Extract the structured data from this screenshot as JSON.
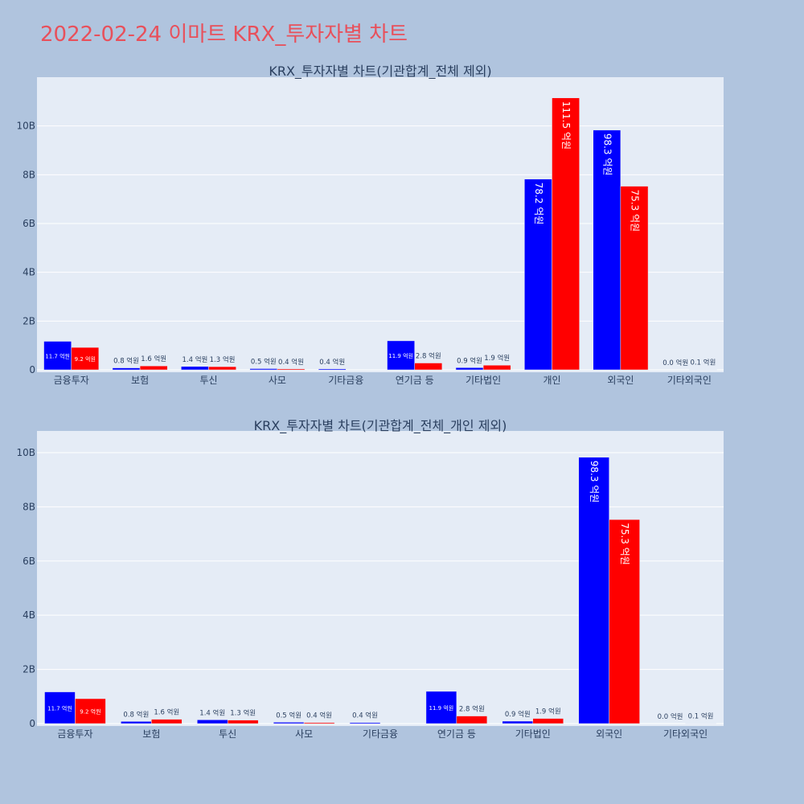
{
  "page": {
    "title": "2022-02-24 이마트 KRX_투자자별 차트"
  },
  "colors": {
    "page_bg": "#b0c4de",
    "plot_bg": "#e5ecf6",
    "buy": "#0000ff",
    "sell": "#ff0000",
    "title": "#e8505b",
    "text": "#2a3f5f"
  },
  "chart_data": [
    {
      "type": "bar",
      "title": "KRX_투자자별 차트(기관합계_전체 제외)",
      "categories": [
        "금융투자",
        "보험",
        "투신",
        "사모",
        "기타금융",
        "연기금 등",
        "기타법인",
        "개인",
        "외국인",
        "기타외국인"
      ],
      "series": [
        {
          "color": "#0000ff",
          "values": [
            1.17,
            0.08,
            0.14,
            0.05,
            0.04,
            1.19,
            0.09,
            7.82,
            9.83,
            0.0
          ],
          "labels": [
            "11.7 억원",
            "0.8 억원",
            "1.4 억원",
            "0.5 억원",
            "0.4 억원",
            "11.9 억원",
            "0.9 억원",
            "78.2 억원",
            "98.3 억원",
            "0.0 억원"
          ]
        },
        {
          "color": "#ff0000",
          "values": [
            0.92,
            0.16,
            0.13,
            0.04,
            0.0,
            0.28,
            0.19,
            11.15,
            7.53,
            0.01
          ],
          "labels": [
            "9.2 억원",
            "1.6 억원",
            "1.3 억원",
            "0.4 억원",
            "",
            "2.8 억원",
            "1.9 억원",
            "111.5 억원",
            "75.3 억원",
            "0.1 억원"
          ]
        }
      ],
      "yticks": [
        0,
        2,
        4,
        6,
        8,
        10
      ],
      "ytick_labels": [
        "0",
        "2B",
        "4B",
        "6B",
        "8B",
        "10B"
      ],
      "ylim": [
        0,
        12
      ],
      "grid": true
    },
    {
      "type": "bar",
      "title": "KRX_투자자별 차트(기관합계_전체_개인 제외)",
      "categories": [
        "금융투자",
        "보험",
        "투신",
        "사모",
        "기타금융",
        "연기금 등",
        "기타법인",
        "외국인",
        "기타외국인"
      ],
      "series": [
        {
          "color": "#0000ff",
          "values": [
            1.17,
            0.08,
            0.14,
            0.05,
            0.04,
            1.19,
            0.09,
            9.83,
            0.0
          ],
          "labels": [
            "11.7 억원",
            "0.8 억원",
            "1.4 억원",
            "0.5 억원",
            "0.4 억원",
            "11.9 억원",
            "0.9 억원",
            "98.3 억원",
            "0.0 억원"
          ]
        },
        {
          "color": "#ff0000",
          "values": [
            0.92,
            0.16,
            0.13,
            0.04,
            0.0,
            0.28,
            0.19,
            7.53,
            0.01
          ],
          "labels": [
            "9.2 억원",
            "1.6 억원",
            "1.3 억원",
            "0.4 억원",
            "",
            "2.8 억원",
            "1.9 억원",
            "75.3 억원",
            "0.1 억원"
          ]
        }
      ],
      "yticks": [
        0,
        2,
        4,
        6,
        8,
        10
      ],
      "ytick_labels": [
        "0",
        "2B",
        "4B",
        "6B",
        "8B",
        "10B"
      ],
      "ylim": [
        0,
        10.8
      ],
      "grid": true
    }
  ]
}
